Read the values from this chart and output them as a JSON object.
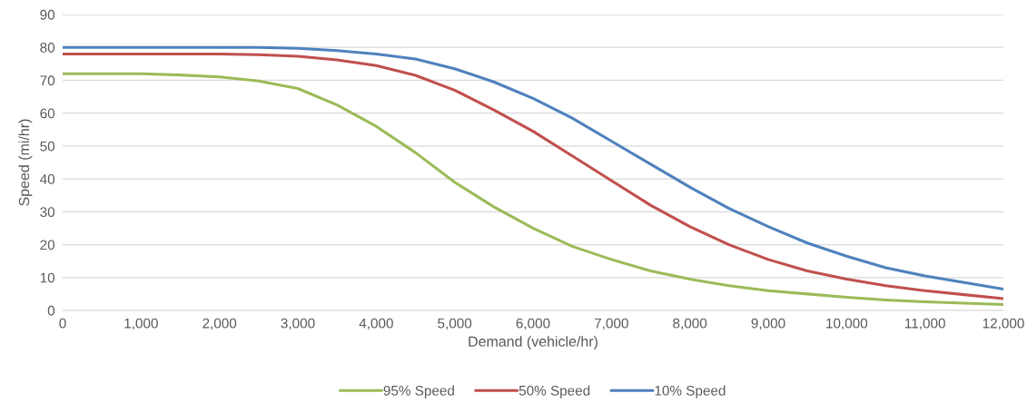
{
  "chart_data": {
    "type": "line",
    "xlabel": "Demand (vehicle/hr)",
    "ylabel": "Speed (mi/hr)",
    "x": [
      0,
      500,
      1000,
      1500,
      2000,
      2500,
      3000,
      3500,
      4000,
      4500,
      5000,
      5500,
      6000,
      6500,
      7000,
      7500,
      8000,
      8500,
      9000,
      9500,
      10000,
      10500,
      11000,
      11500,
      12000
    ],
    "series": [
      {
        "name": "95% Speed",
        "color": "#9bbb59",
        "values": [
          72,
          72,
          72,
          71.6,
          71,
          69.8,
          67.5,
          62.5,
          56,
          48,
          39,
          31.5,
          25,
          19.5,
          15.5,
          12,
          9.5,
          7.5,
          6,
          5,
          4,
          3.2,
          2.6,
          2.2,
          1.8
        ]
      },
      {
        "name": "50% Speed",
        "color": "#c0504d",
        "values": [
          78,
          78,
          78,
          78,
          78,
          77.8,
          77.3,
          76.2,
          74.5,
          71.5,
          67,
          61,
          54.5,
          47,
          39.5,
          32,
          25.5,
          20,
          15.5,
          12,
          9.5,
          7.5,
          6,
          4.8,
          3.6
        ]
      },
      {
        "name": "10% Speed",
        "color": "#4f81bd",
        "values": [
          80,
          80,
          80,
          80,
          80,
          80,
          79.7,
          79,
          78,
          76.5,
          73.5,
          69.5,
          64.5,
          58.5,
          51.5,
          44.5,
          37.5,
          31,
          25.5,
          20.5,
          16.5,
          13,
          10.5,
          8.5,
          6.5
        ]
      }
    ],
    "xlim": [
      0,
      12000
    ],
    "xticks": [
      0,
      {
        "value": 1000,
        "label": "1,000"
      },
      {
        "value": 2000,
        "label": "2,000"
      },
      {
        "value": 3000,
        "label": "3,000"
      },
      {
        "value": 4000,
        "label": "4,000"
      },
      {
        "value": 5000,
        "label": "5,000"
      },
      {
        "value": 6000,
        "label": "6,000"
      },
      {
        "value": 7000,
        "label": "7,000"
      },
      {
        "value": 8000,
        "label": "8,000"
      },
      {
        "value": 9000,
        "label": "9,000"
      },
      {
        "value": 10000,
        "label": "10,000"
      },
      {
        "value": 11000,
        "label": "11,000"
      },
      {
        "value": 12000,
        "label": "12,000"
      }
    ],
    "ylim": [
      0,
      90
    ],
    "yticks": [
      0,
      10,
      20,
      30,
      40,
      50,
      60,
      70,
      80,
      90
    ],
    "grid": "y",
    "legend": "bottom",
    "marker": "none",
    "line_style": "solid"
  }
}
